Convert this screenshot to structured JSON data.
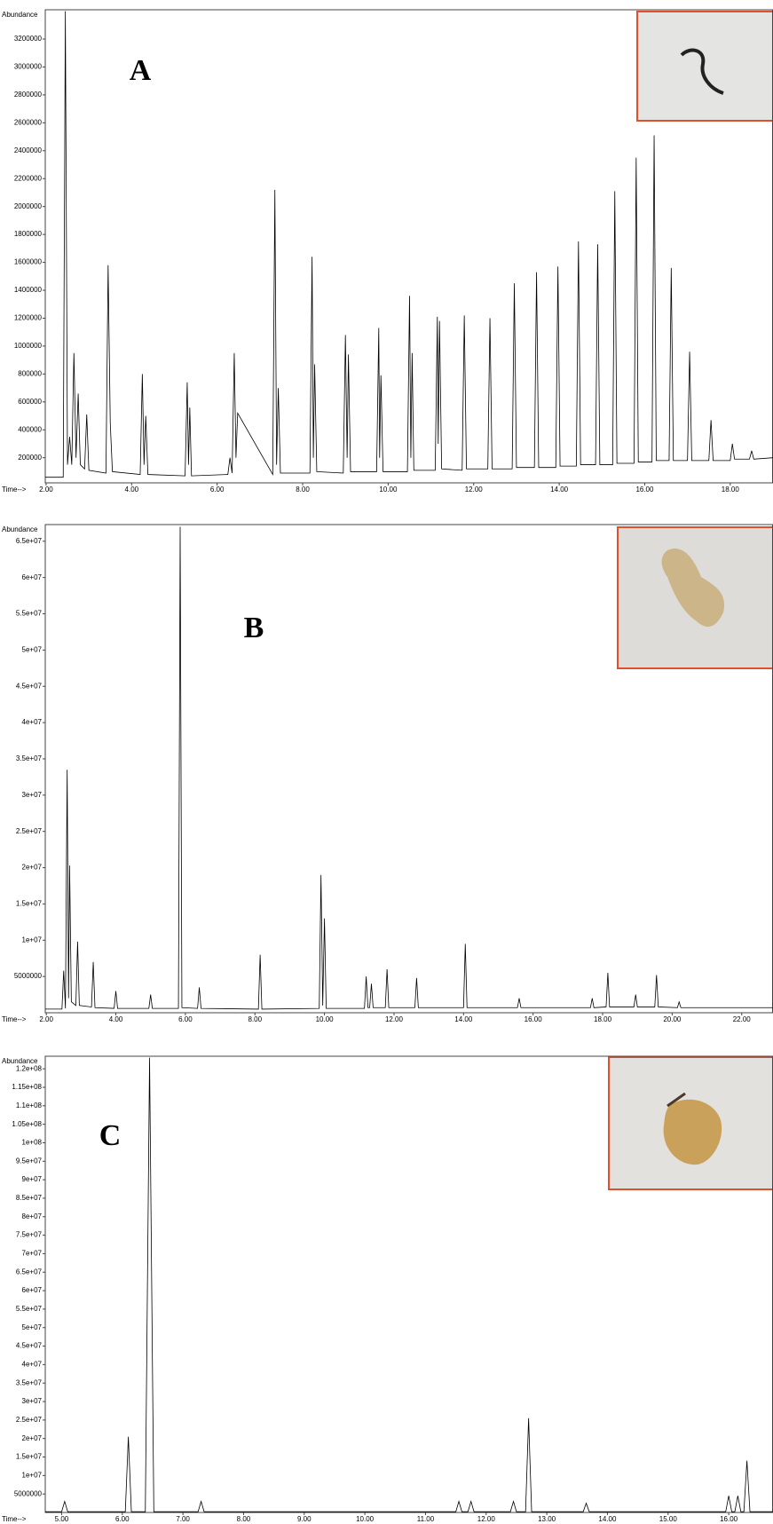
{
  "chart_data": [
    {
      "type": "line",
      "annotation": "A",
      "ylabel": "Abundance",
      "xlabel": "Time-->",
      "xlim": [
        1.98,
        19.0
      ],
      "ylim": [
        20000,
        3410000
      ],
      "xticks": [
        {
          "value": 2,
          "label": "2.00"
        },
        {
          "value": 4,
          "label": "4.00"
        },
        {
          "value": 6,
          "label": "6.00"
        },
        {
          "value": 8,
          "label": "8.00"
        },
        {
          "value": 10,
          "label": "10.00"
        },
        {
          "value": 12,
          "label": "12.00"
        },
        {
          "value": 14,
          "label": "14.00"
        },
        {
          "value": 16,
          "label": "16.00"
        },
        {
          "value": 18,
          "label": "18.00"
        }
      ],
      "yticks": [
        200000,
        400000,
        600000,
        800000,
        1000000,
        1200000,
        1400000,
        1600000,
        1800000,
        2000000,
        2200000,
        2400000,
        2600000,
        2800000,
        3000000,
        3200000
      ],
      "grid": false,
      "x": [
        1.98,
        2.4,
        2.45,
        2.5,
        2.55,
        2.6,
        2.65,
        2.7,
        2.75,
        2.8,
        2.9,
        2.95,
        3.0,
        3.4,
        3.45,
        3.5,
        3.55,
        4.2,
        4.25,
        4.29,
        4.33,
        4.38,
        5.25,
        5.3,
        5.33,
        5.36,
        5.4,
        6.25,
        6.3,
        6.35,
        6.4,
        6.44,
        6.48,
        7.3,
        7.35,
        7.39,
        7.43,
        7.48,
        8.17,
        8.22,
        8.25,
        8.28,
        8.33,
        8.95,
        9.0,
        9.04,
        9.07,
        9.12,
        9.73,
        9.78,
        9.8,
        9.83,
        9.88,
        10.45,
        10.5,
        10.53,
        10.56,
        10.6,
        11.1,
        11.15,
        11.17,
        11.2,
        11.25,
        11.73,
        11.78,
        11.83,
        12.33,
        12.38,
        12.43,
        12.9,
        12.95,
        13.0,
        13.42,
        13.47,
        13.52,
        13.92,
        13.97,
        14.02,
        14.4,
        14.45,
        14.5,
        14.85,
        14.9,
        14.95,
        15.25,
        15.3,
        15.35,
        15.75,
        15.8,
        15.85,
        16.17,
        16.22,
        16.27,
        16.57,
        16.62,
        16.67,
        17.0,
        17.05,
        17.1,
        17.5,
        17.55,
        17.6,
        18.0,
        18.05,
        18.1,
        18.45,
        18.5,
        18.55,
        19.0
      ],
      "series": [
        {
          "color": "#000000",
          "values": [
            60000,
            60000,
            3400000,
            150000,
            350000,
            150000,
            950000,
            200000,
            660000,
            150000,
            120000,
            510000,
            110000,
            90000,
            1580000,
            450000,
            100000,
            80000,
            800000,
            150000,
            500000,
            80000,
            70000,
            740000,
            150000,
            560000,
            70000,
            80000,
            200000,
            90000,
            950000,
            200000,
            520000,
            80000,
            2120000,
            150000,
            700000,
            90000,
            90000,
            1640000,
            200000,
            870000,
            100000,
            90000,
            1080000,
            200000,
            940000,
            100000,
            100000,
            1130000,
            200000,
            790000,
            100000,
            100000,
            1360000,
            200000,
            950000,
            110000,
            110000,
            1210000,
            300000,
            1180000,
            120000,
            110000,
            1220000,
            120000,
            120000,
            1200000,
            120000,
            120000,
            1450000,
            130000,
            130000,
            1530000,
            130000,
            130000,
            1570000,
            140000,
            140000,
            1750000,
            150000,
            150000,
            1730000,
            150000,
            150000,
            2110000,
            160000,
            160000,
            2350000,
            170000,
            170000,
            2510000,
            180000,
            180000,
            1560000,
            180000,
            180000,
            960000,
            180000,
            180000,
            470000,
            180000,
            180000,
            300000,
            190000,
            190000,
            250000,
            190000,
            200000
          ]
        }
      ]
    },
    {
      "type": "line",
      "annotation": "B",
      "ylabel": "Abundance",
      "xlabel": "Time-->",
      "xlim": [
        1.97,
        22.9
      ],
      "ylim": [
        0,
        67300000
      ],
      "xticks": [
        {
          "value": 2,
          "label": "2.00"
        },
        {
          "value": 4,
          "label": "4.00"
        },
        {
          "value": 6,
          "label": "6.00"
        },
        {
          "value": 8,
          "label": "8.00"
        },
        {
          "value": 10,
          "label": "10.00"
        },
        {
          "value": 12,
          "label": "12.00"
        },
        {
          "value": 14,
          "label": "14.00"
        },
        {
          "value": 16,
          "label": "16.00"
        },
        {
          "value": 18,
          "label": "18.00"
        },
        {
          "value": 20,
          "label": "20.00"
        },
        {
          "value": 22,
          "label": "22.00"
        }
      ],
      "yticks": [
        5000000,
        {
          "value": 10000000,
          "label": "1e+07"
        },
        {
          "value": 15000000,
          "label": "1.5e+07"
        },
        {
          "value": 20000000,
          "label": "2e+07"
        },
        {
          "value": 25000000,
          "label": "2.5e+07"
        },
        {
          "value": 30000000,
          "label": "3e+07"
        },
        {
          "value": 35000000,
          "label": "3.5e+07"
        },
        {
          "value": 40000000,
          "label": "4e+07"
        },
        {
          "value": 45000000,
          "label": "4.5e+07"
        },
        {
          "value": 50000000,
          "label": "5e+07"
        },
        {
          "value": 55000000,
          "label": "5.5e+07"
        },
        {
          "value": 60000000,
          "label": "6e+07"
        },
        {
          "value": 65000000,
          "label": "6.5e+07"
        }
      ],
      "grid": false,
      "x": [
        1.97,
        2.45,
        2.5,
        2.55,
        2.6,
        2.64,
        2.67,
        2.72,
        2.85,
        2.9,
        2.95,
        3.3,
        3.35,
        3.4,
        3.95,
        4.0,
        4.05,
        4.95,
        5.0,
        5.05,
        5.8,
        5.85,
        5.9,
        6.35,
        6.4,
        6.45,
        8.1,
        8.15,
        8.2,
        9.85,
        9.9,
        9.95,
        10.0,
        10.05,
        11.15,
        11.2,
        11.25,
        11.3,
        11.35,
        11.4,
        11.75,
        11.8,
        11.85,
        12.6,
        12.65,
        12.7,
        14.0,
        14.05,
        14.1,
        15.55,
        15.6,
        15.65,
        17.65,
        17.7,
        17.75,
        18.1,
        18.15,
        18.2,
        18.9,
        18.95,
        19.0,
        19.5,
        19.55,
        19.6,
        20.15,
        20.2,
        20.25,
        22.9
      ],
      "series": [
        {
          "color": "#000000",
          "values": [
            500000,
            500000,
            5800000,
            600000,
            33500000,
            2000000,
            20300000,
            1500000,
            1000000,
            9800000,
            1000000,
            800000,
            7000000,
            700000,
            600000,
            3000000,
            600000,
            600000,
            2500000,
            600000,
            600000,
            67000000,
            700000,
            600000,
            3500000,
            600000,
            500000,
            8000000,
            500000,
            600000,
            19000000,
            1000000,
            13000000,
            600000,
            600000,
            5000000,
            700000,
            700000,
            4000000,
            700000,
            700000,
            6000000,
            700000,
            700000,
            4800000,
            700000,
            700000,
            9500000,
            700000,
            700000,
            2000000,
            700000,
            700000,
            2000000,
            700000,
            800000,
            5500000,
            800000,
            800000,
            2500000,
            800000,
            800000,
            5200000,
            800000,
            700000,
            1500000,
            700000,
            700000
          ]
        }
      ]
    },
    {
      "type": "line",
      "annotation": "C",
      "ylabel": "Abundance",
      "xlabel": "Time-->",
      "xlim": [
        4.73,
        16.73
      ],
      "ylim": [
        0,
        123400000
      ],
      "xticks": [
        {
          "value": 5,
          "label": "5.00"
        },
        {
          "value": 6,
          "label": "6.00"
        },
        {
          "value": 7,
          "label": "7.00"
        },
        {
          "value": 8,
          "label": "8.00"
        },
        {
          "value": 9,
          "label": "9.00"
        },
        {
          "value": 10,
          "label": "10.00"
        },
        {
          "value": 11,
          "label": "11.00"
        },
        {
          "value": 12,
          "label": "12.00"
        },
        {
          "value": 13,
          "label": "13.00"
        },
        {
          "value": 14,
          "label": "14.00"
        },
        {
          "value": 15,
          "label": "15.00"
        },
        {
          "value": 16,
          "label": "16.00"
        }
      ],
      "yticks": [
        5000000,
        {
          "value": 10000000,
          "label": "1e+07"
        },
        {
          "value": 15000000,
          "label": "1.5e+07"
        },
        {
          "value": 20000000,
          "label": "2e+07"
        },
        {
          "value": 25000000,
          "label": "2.5e+07"
        },
        {
          "value": 30000000,
          "label": "3e+07"
        },
        {
          "value": 35000000,
          "label": "3.5e+07"
        },
        {
          "value": 40000000,
          "label": "4e+07"
        },
        {
          "value": 45000000,
          "label": "4.5e+07"
        },
        {
          "value": 50000000,
          "label": "5e+07"
        },
        {
          "value": 55000000,
          "label": "5.5e+07"
        },
        {
          "value": 60000000,
          "label": "6e+07"
        },
        {
          "value": 65000000,
          "label": "6.5e+07"
        },
        {
          "value": 70000000,
          "label": "7e+07"
        },
        {
          "value": 75000000,
          "label": "7.5e+07"
        },
        {
          "value": 80000000,
          "label": "8e+07"
        },
        {
          "value": 85000000,
          "label": "8.5e+07"
        },
        {
          "value": 90000000,
          "label": "9e+07"
        },
        {
          "value": 95000000,
          "label": "9.5e+07"
        },
        {
          "value": 100000000,
          "label": "1e+08"
        },
        {
          "value": 105000000,
          "label": "1.05e+08"
        },
        {
          "value": 110000000,
          "label": "1.1e+08"
        },
        {
          "value": 115000000,
          "label": "1.15e+08"
        },
        {
          "value": 120000000,
          "label": "1.2e+08"
        }
      ],
      "grid": false,
      "x": [
        4.73,
        5.0,
        5.05,
        5.1,
        6.05,
        6.1,
        6.15,
        6.38,
        6.45,
        6.52,
        7.25,
        7.3,
        7.35,
        11.5,
        11.55,
        11.6,
        11.7,
        11.75,
        11.8,
        12.4,
        12.45,
        12.5,
        12.65,
        12.7,
        12.75,
        13.6,
        13.65,
        13.7,
        15.95,
        16.0,
        16.05,
        16.1,
        16.15,
        16.2,
        16.25,
        16.3,
        16.35,
        16.73
      ],
      "series": [
        {
          "color": "#000000",
          "values": [
            200000,
            200000,
            3000000,
            200000,
            200000,
            20500000,
            200000,
            200000,
            123000000,
            200000,
            200000,
            3000000,
            200000,
            200000,
            3000000,
            200000,
            200000,
            3000000,
            200000,
            200000,
            3000000,
            200000,
            200000,
            25500000,
            200000,
            200000,
            2500000,
            200000,
            200000,
            4500000,
            200000,
            200000,
            4500000,
            200000,
            200000,
            14000000,
            200000,
            200000
          ]
        }
      ]
    }
  ]
}
